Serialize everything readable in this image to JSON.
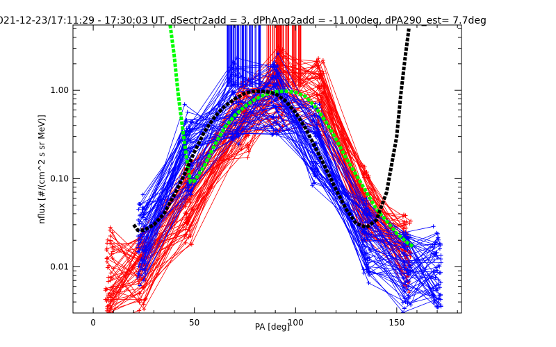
{
  "chart_data": {
    "type": "line",
    "title": "021-12-23/17:11:29 - 17:30:03 UT, dSectr2add = 3, dPhAng2add = -11.00deg, dPA290_est=    7.7deg",
    "xlabel": "PA [deg]",
    "ylabel": "nflux [#/(cm^2 s sr MeV)]",
    "xlim": [
      -10,
      182
    ],
    "ylim": [
      0.003,
      5.5
    ],
    "yscale": "log",
    "grid": false,
    "x_ticks": [
      0,
      50,
      100,
      150
    ],
    "x_tick_labels": [
      "0",
      "50",
      "100",
      "150"
    ],
    "y_ticks": [
      0.01,
      0.1,
      1.0
    ],
    "y_tick_labels": [
      "0.01",
      "0.10",
      "1.00"
    ],
    "colors": {
      "red_traces": "#ff0000",
      "blue_traces": "#0000ff",
      "fit_green": "#00ff00",
      "fit_black": "#000000"
    },
    "series": [
      {
        "color": "red",
        "style": "many traces with + markers",
        "x": [
          8,
          24,
          47,
          75,
          92,
          112,
          135,
          155
        ],
        "y": [
          0.008,
          0.009,
          0.05,
          0.5,
          0.95,
          0.85,
          0.05,
          0.015
        ],
        "trace_count": 60,
        "vertical_ticks_x_range": [
          85,
          103
        ]
      },
      {
        "color": "blue",
        "style": "many traces with + markers",
        "x": [
          24,
          47,
          70,
          90,
          110,
          135,
          155,
          170
        ],
        "y": [
          0.02,
          0.2,
          0.75,
          0.8,
          0.25,
          0.02,
          0.01,
          0.009
        ],
        "trace_count": 60,
        "vertical_ticks_x_range": [
          66,
          84
        ]
      },
      {
        "color": "green",
        "style": "thick dashed fit",
        "x": [
          38,
          40,
          42,
          44,
          46,
          48,
          50,
          55,
          60,
          65,
          70,
          75,
          80,
          85,
          90,
          95,
          100,
          105,
          110,
          115,
          120,
          125,
          130,
          135,
          140,
          145,
          150,
          155,
          158
        ],
        "y": [
          5.5,
          2.5,
          0.9,
          0.4,
          0.18,
          0.092,
          0.094,
          0.14,
          0.24,
          0.38,
          0.52,
          0.66,
          0.79,
          0.9,
          0.96,
          0.98,
          0.95,
          0.85,
          0.64,
          0.44,
          0.28,
          0.17,
          0.11,
          0.07,
          0.045,
          0.033,
          0.024,
          0.019,
          0.017
        ]
      },
      {
        "color": "black",
        "style": "thick dashed fit",
        "x": [
          20,
          22,
          25,
          30,
          35,
          40,
          45,
          50,
          55,
          60,
          65,
          70,
          75,
          80,
          85,
          90,
          95,
          100,
          105,
          110,
          115,
          120,
          125,
          130,
          135,
          140,
          145,
          150,
          152,
          154,
          156
        ],
        "y": [
          0.03,
          0.026,
          0.026,
          0.03,
          0.04,
          0.065,
          0.11,
          0.2,
          0.34,
          0.5,
          0.66,
          0.8,
          0.93,
          0.98,
          0.97,
          0.92,
          0.76,
          0.56,
          0.37,
          0.22,
          0.13,
          0.075,
          0.045,
          0.031,
          0.028,
          0.034,
          0.07,
          0.3,
          0.9,
          2.2,
          5.0
        ]
      }
    ]
  }
}
